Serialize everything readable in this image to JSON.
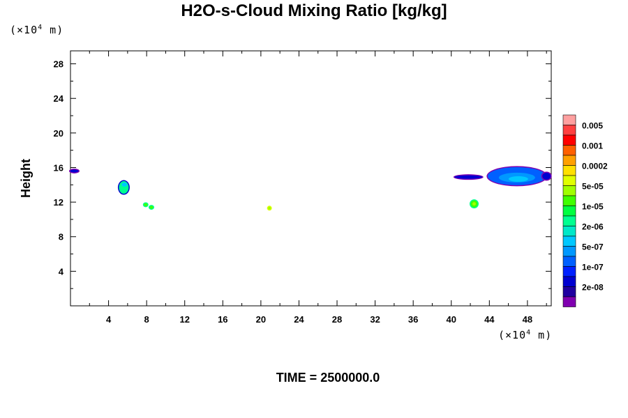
{
  "chart_data": {
    "type": "heatmap",
    "title": "H2O-s-Cloud Mixing Ratio [kg/kg]",
    "ylabel": "Height",
    "xlabel": "",
    "x_unit_prefix": "(×10",
    "x_unit_exp": "4",
    "x_unit_suffix": " m)",
    "y_unit_prefix": "(×10",
    "y_unit_exp": "4",
    "y_unit_suffix": " m)",
    "xlim": [
      0,
      50.5
    ],
    "ylim": [
      0,
      29.5
    ],
    "x_ticks": [
      "4",
      "8",
      "12",
      "16",
      "20",
      "24",
      "28",
      "32",
      "36",
      "40",
      "44",
      "48"
    ],
    "y_ticks": [
      "4",
      "8",
      "12",
      "16",
      "20",
      "24",
      "28"
    ],
    "grid": false,
    "legend_position": "right",
    "legend_labels": [
      "0.005",
      "0.001",
      "0.0002",
      "5e-05",
      "1e-05",
      "2e-06",
      "5e-07",
      "1e-07",
      "2e-08"
    ],
    "colorbar_colors": [
      "#ffa0a0",
      "#ff4040",
      "#ff0000",
      "#ff6000",
      "#ffa000",
      "#ffe000",
      "#e0ff00",
      "#a0ff00",
      "#40ff00",
      "#00ff40",
      "#00ff90",
      "#00e8c8",
      "#00c8ff",
      "#0098ff",
      "#0060ff",
      "#0020ff",
      "#0000d0",
      "#2000a0",
      "#8000b0"
    ],
    "features": [
      {
        "x": 0.4,
        "y": 15.6,
        "color": "#0000d0"
      },
      {
        "x": 5.6,
        "y": 13.7,
        "color": "#00ff90"
      },
      {
        "x": 7.9,
        "y": 11.7,
        "color": "#40ff00"
      },
      {
        "x": 8.5,
        "y": 11.4,
        "color": "#40ff00"
      },
      {
        "x": 20.9,
        "y": 11.3,
        "color": "#a0ff00"
      },
      {
        "x": 42.4,
        "y": 11.8,
        "color": "#40ff00"
      },
      {
        "x": 41.8,
        "y": 14.9,
        "color": "#0000d0"
      },
      {
        "x": 46.9,
        "y": 15.0,
        "color": "#0060ff"
      },
      {
        "x": 50.0,
        "y": 15.0,
        "color": "#0000d0"
      }
    ],
    "time_label": "TIME = 2500000.0"
  }
}
